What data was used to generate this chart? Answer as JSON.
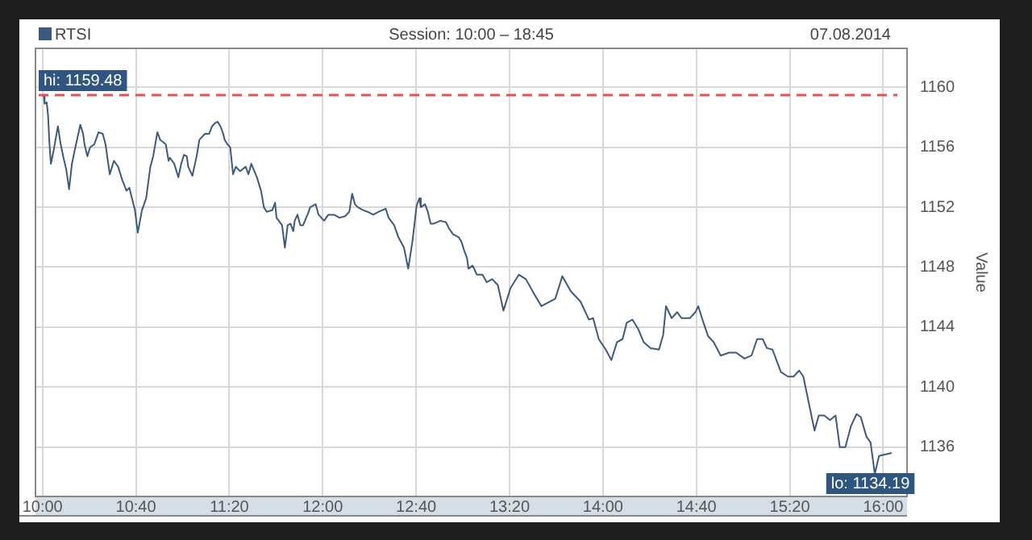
{
  "chart_data": {
    "type": "line",
    "title": "Session: 10:00 – 18:45",
    "ylabel": "Value",
    "annotations": [
      "07.08.2014",
      {
        "text": "lo: 1134.19",
        "x": 15.94,
        "y": 1134.19
      }
    ],
    "x": [
      10.0,
      10.01,
      10.015,
      10.03,
      10.04,
      10.05,
      10.06,
      10.08,
      10.11,
      10.13,
      10.15,
      10.17,
      10.19,
      10.21,
      10.23,
      10.27,
      10.29,
      10.3,
      10.32,
      10.34,
      10.37,
      10.4,
      10.43,
      10.45,
      10.48,
      10.51,
      10.54,
      10.57,
      10.6,
      10.62,
      10.66,
      10.68,
      10.71,
      10.74,
      10.77,
      10.79,
      10.82,
      10.84,
      10.88,
      10.9,
      10.91,
      10.94,
      10.97,
      10.99,
      11.01,
      11.03,
      11.04,
      11.07,
      11.1,
      11.12,
      11.16,
      11.19,
      11.21,
      11.23,
      11.25,
      11.27,
      11.29,
      11.3,
      11.32,
      11.34,
      11.36,
      11.38,
      11.41,
      11.45,
      11.47,
      11.49,
      11.53,
      11.56,
      11.58,
      11.6,
      11.64,
      11.66,
      11.67,
      11.71,
      11.73,
      11.75,
      11.77,
      11.79,
      11.8,
      11.82,
      11.84,
      11.86,
      11.9,
      11.91,
      11.95,
      11.97,
      11.99,
      12.01,
      12.04,
      12.08,
      12.12,
      12.16,
      12.19,
      12.21,
      12.23,
      12.25,
      12.29,
      12.32,
      12.36,
      12.4,
      12.45,
      12.47,
      12.51,
      12.54,
      12.58,
      12.61,
      12.64,
      12.67,
      12.69,
      12.7,
      12.73,
      12.75,
      12.77,
      12.79,
      12.84,
      12.88,
      12.9,
      12.93,
      12.97,
      12.99,
      13.01,
      13.03,
      13.04,
      13.07,
      13.1,
      13.14,
      13.17,
      13.21,
      13.25,
      13.29,
      13.34,
      13.4,
      13.45,
      13.51,
      13.56,
      13.66,
      13.71,
      13.77,
      13.84,
      13.9,
      13.93,
      13.97,
      14.02,
      14.06,
      14.1,
      14.14,
      14.17,
      14.21,
      14.25,
      14.29,
      14.34,
      14.4,
      14.43,
      14.45,
      14.49,
      14.53,
      14.56,
      14.62,
      14.66,
      14.68,
      14.71,
      14.75,
      14.79,
      14.84,
      14.9,
      14.95,
      15.01,
      15.06,
      15.1,
      15.14,
      15.17,
      15.21,
      15.27,
      15.32,
      15.36,
      15.4,
      15.43,
      15.47,
      15.51,
      15.54,
      15.58,
      15.62,
      15.66,
      15.69,
      15.73,
      15.77,
      15.81,
      15.84,
      15.88,
      15.91,
      15.94,
      15.97,
      16.01,
      16.06
    ],
    "series": [
      {
        "name": "RTSI",
        "color": "#3c5a80",
        "values": [
          1159.4,
          1159.5,
          1158.9,
          1159.0,
          1158.1,
          1156.2,
          1154.9,
          1155.8,
          1157.4,
          1156.2,
          1155.3,
          1154.5,
          1153.2,
          1154.9,
          1155.8,
          1157.5,
          1156.9,
          1156.2,
          1155.4,
          1156.0,
          1156.2,
          1157.0,
          1156.9,
          1156.2,
          1154.2,
          1155.1,
          1154.7,
          1153.8,
          1153.1,
          1153.3,
          1151.8,
          1150.3,
          1151.8,
          1152.6,
          1154.7,
          1155.4,
          1157.0,
          1156.5,
          1156.2,
          1155.1,
          1155.3,
          1154.9,
          1154.0,
          1154.9,
          1155.5,
          1155.4,
          1154.7,
          1154.1,
          1155.4,
          1156.5,
          1156.9,
          1156.9,
          1157.4,
          1157.6,
          1157.7,
          1157.4,
          1156.9,
          1156.5,
          1156.2,
          1156.0,
          1154.2,
          1154.7,
          1154.4,
          1154.7,
          1154.2,
          1154.9,
          1154.0,
          1153.1,
          1152.0,
          1151.7,
          1151.8,
          1152.3,
          1151.3,
          1150.8,
          1149.3,
          1150.8,
          1150.9,
          1150.4,
          1151.1,
          1151.5,
          1150.8,
          1150.8,
          1151.7,
          1152.0,
          1152.2,
          1151.5,
          1151.3,
          1151.1,
          1151.5,
          1151.5,
          1151.3,
          1151.4,
          1151.7,
          1152.9,
          1152.2,
          1152.0,
          1151.8,
          1151.7,
          1151.5,
          1151.7,
          1151.9,
          1151.3,
          1150.8,
          1150.0,
          1149.3,
          1147.9,
          1149.7,
          1152.1,
          1152.6,
          1152.0,
          1152.2,
          1151.7,
          1150.9,
          1150.9,
          1151.1,
          1151.0,
          1150.6,
          1150.2,
          1150.0,
          1149.7,
          1149.1,
          1148.6,
          1147.9,
          1148.1,
          1147.5,
          1147.5,
          1147.0,
          1147.2,
          1146.8,
          1145.1,
          1146.6,
          1147.5,
          1147.2,
          1146.2,
          1145.4,
          1145.9,
          1147.4,
          1146.4,
          1145.7,
          1144.5,
          1144.6,
          1143.2,
          1142.5,
          1141.8,
          1143.0,
          1143.2,
          1144.3,
          1144.5,
          1143.9,
          1143.0,
          1142.6,
          1142.5,
          1143.5,
          1145.4,
          1144.6,
          1145.0,
          1144.6,
          1144.6,
          1145.0,
          1145.4,
          1144.5,
          1143.4,
          1143.0,
          1142.1,
          1142.3,
          1142.3,
          1141.9,
          1142.1,
          1143.2,
          1143.2,
          1142.6,
          1142.5,
          1141.0,
          1140.7,
          1140.7,
          1141.1,
          1140.7,
          1138.9,
          1137.1,
          1138.1,
          1138.1,
          1137.8,
          1138.1,
          1136.0,
          1136.0,
          1137.4,
          1138.2,
          1138.0,
          1136.7,
          1136.3,
          1134.2,
          1135.4,
          1135.5,
          1135.6
        ]
      }
    ],
    "xlim": [
      9.95,
      16.17
    ],
    "xticks": [
      {
        "value": 10,
        "label": "10:00"
      },
      {
        "value": 10.6667,
        "label": "10:40"
      },
      {
        "value": 11.3333,
        "label": "11:20"
      },
      {
        "value": 12,
        "label": "12:00"
      },
      {
        "value": 12.6667,
        "label": "12:40"
      },
      {
        "value": 13.3333,
        "label": "13:20"
      },
      {
        "value": 14,
        "label": "14:00"
      },
      {
        "value": 14.6667,
        "label": "14:40"
      },
      {
        "value": 15.3333,
        "label": "15:20"
      },
      {
        "value": 16,
        "label": "16:00"
      }
    ],
    "ylim": [
      1132.7,
      1162.6
    ],
    "yticks": [
      1136,
      1140,
      1144,
      1148,
      1152,
      1156,
      1160
    ],
    "ref_lines": [
      {
        "axis": "y",
        "value": 1159.48,
        "label": "hi: 1159.48",
        "color": "#e85050",
        "line_style": "dashed"
      }
    ],
    "grid": true,
    "legend": "top left",
    "marker": "none",
    "line_style": "solid"
  }
}
